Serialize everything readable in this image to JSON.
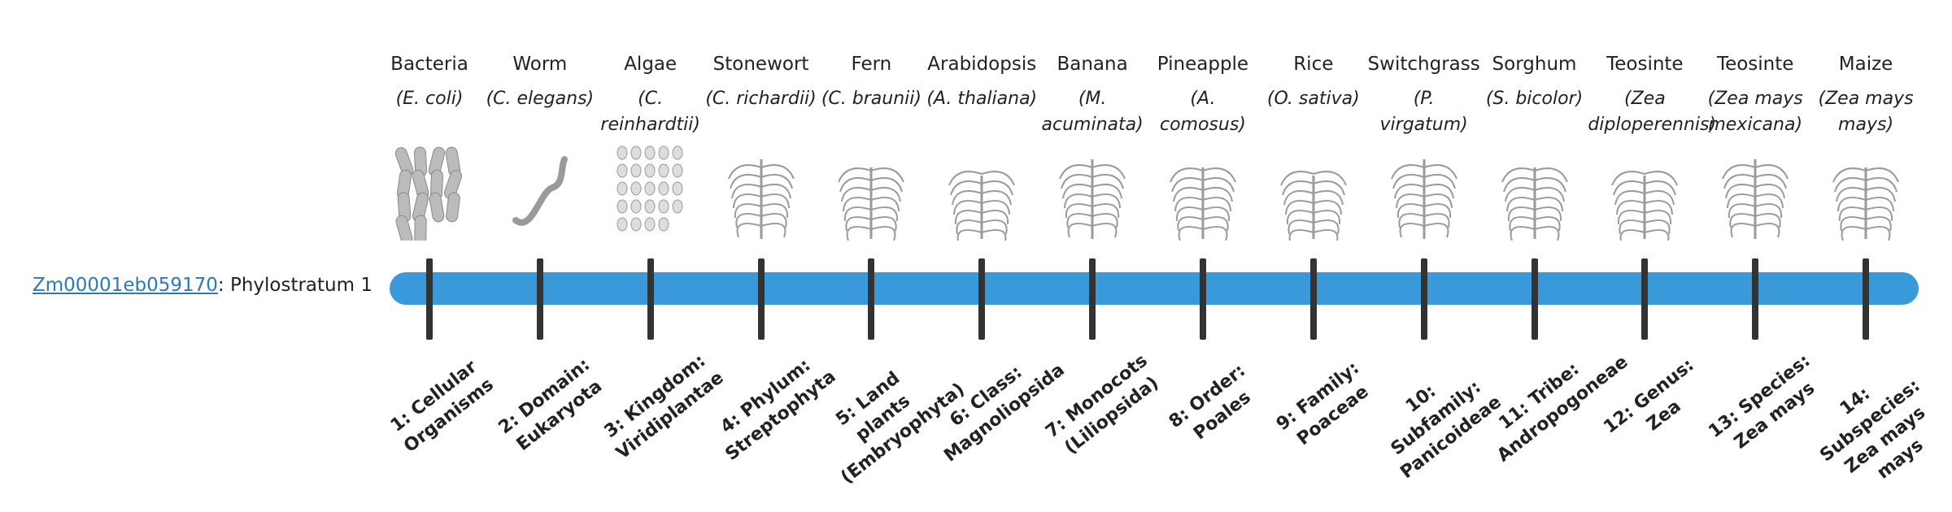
{
  "gene": {
    "link": "Zm00001eb059170",
    "text": ": Phylostratum 1"
  },
  "strata": [
    {
      "name": "Bacteria",
      "species": "(E. coli)",
      "label": "1: Cellular Organisms"
    },
    {
      "name": "Worm",
      "species": "(C. elegans)",
      "label": "2: Domain: Eukaryota"
    },
    {
      "name": "Algae",
      "species": "(C. reinhardtii)",
      "label": "3: Kingdom: Viridiplantae"
    },
    {
      "name": "Stonewort",
      "species": "(C. richardii)",
      "label": "4: Phylum: Streptophyta"
    },
    {
      "name": "Fern",
      "species": "(C. braunii)",
      "label": "5: Land plants (Embryophyta)"
    },
    {
      "name": "Arabidopsis",
      "species": "(A. thaliana)",
      "label": "6: Class: Magnoliopsida"
    },
    {
      "name": "Banana",
      "species": "(M. acuminata)",
      "label": "7: Monocots (Liliopsida)"
    },
    {
      "name": "Pineapple",
      "species": "(A. comosus)",
      "label": "8: Order: Poales"
    },
    {
      "name": "Rice",
      "species": "(O. sativa)",
      "label": "9: Family: Poaceae"
    },
    {
      "name": "Switchgrass",
      "species": "(P. virgatum)",
      "label": "10: Subfamily: Panicoideae"
    },
    {
      "name": "Sorghum",
      "species": "(S. bicolor)",
      "label": "11: Tribe: Andropogoneae"
    },
    {
      "name": "Teosinte",
      "species": "(Zea diploperennis)",
      "label": "12: Genus: Zea"
    },
    {
      "name": "Teosinte",
      "species": "(Zea mays mexicana)",
      "label": "13: Species: Zea mays"
    },
    {
      "name": "Maize",
      "species": "(Zea mays mays)",
      "label": "14: Subspecies: Zea mays mays"
    }
  ]
}
